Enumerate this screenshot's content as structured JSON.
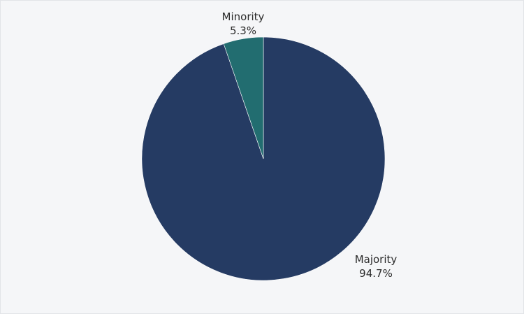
{
  "chart_data": {
    "type": "pie",
    "slices": [
      {
        "name": "Majority",
        "value": 94.7,
        "label": "94.7%",
        "color": "#253b63"
      },
      {
        "name": "Minority",
        "value": 5.3,
        "label": "5.3%",
        "color": "#226d70"
      }
    ],
    "start_angle": "12 o'clock",
    "direction": "clockwise",
    "legend": "none",
    "labels": "outside"
  },
  "colors": {
    "background": "#f5f6f8",
    "separator": "#ffffff"
  }
}
